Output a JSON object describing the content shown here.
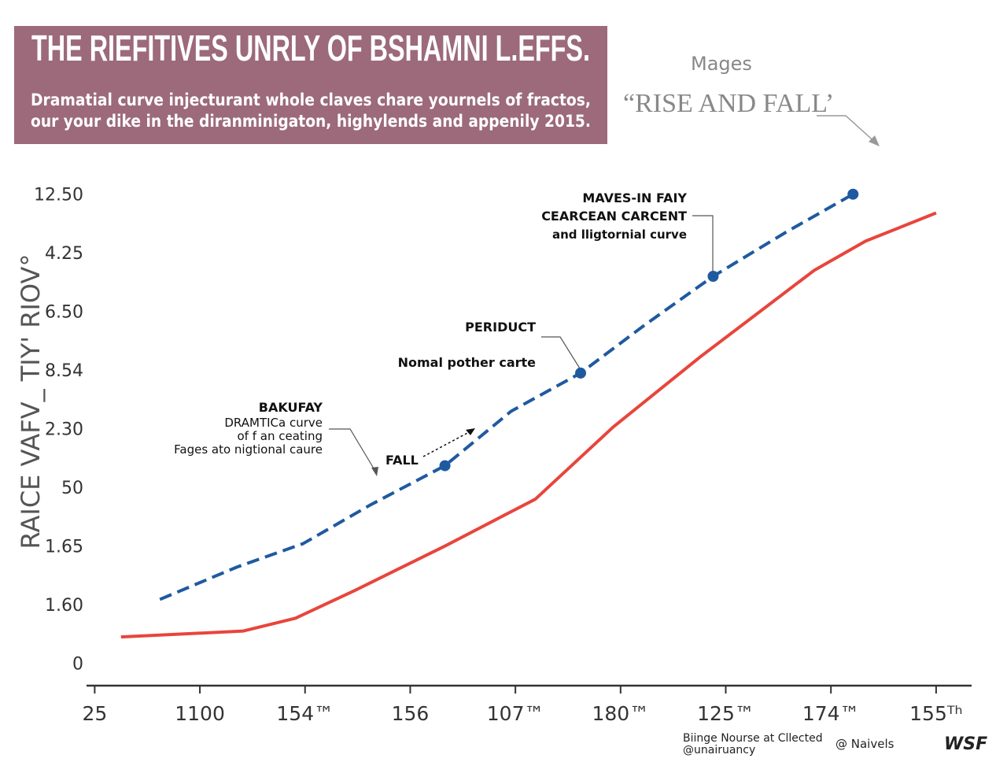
{
  "chart_data": {
    "type": "line",
    "title": "THE RIEFITIVES UNRLY OF BSHAMNI L.EFFS.",
    "subtitle": [
      "Dramatial curve injecturant whole claves chare yournels of fractos,",
      "our your dike in the diranminigaton, highylends and appenily 2015."
    ],
    "side_note": [
      "Mages",
      "“RISE AND FALL’"
    ],
    "ylabel": "RAICE VAFV_ TIY' RIOV°",
    "xlim": [
      -0.1,
      8.3
    ],
    "ylim": [
      -0.3,
      8.6
    ],
    "xticks": [
      {
        "value": 0,
        "label": "25"
      },
      {
        "value": 1,
        "label": "1100"
      },
      {
        "value": 2,
        "label": "154™"
      },
      {
        "value": 3,
        "label": "156"
      },
      {
        "value": 4,
        "label": "107™"
      },
      {
        "value": 5,
        "label": "180™"
      },
      {
        "value": 6,
        "label": "125™"
      },
      {
        "value": 7,
        "label": "174™"
      },
      {
        "value": 8,
        "label": "155ᵀʰ"
      }
    ],
    "yticks": [
      0,
      {
        "value": 1,
        "label": "1.60"
      },
      {
        "value": 2,
        "label": "1.65"
      },
      {
        "value": 3,
        "label": "50"
      },
      {
        "value": 4,
        "label": "2.30"
      },
      {
        "value": 5,
        "label": "8.54"
      },
      {
        "value": 6,
        "label": "6.50"
      },
      {
        "value": 7,
        "label": "4.25"
      },
      {
        "value": 8,
        "label": "12.50"
      }
    ],
    "series": [
      {
        "color": "#1f5aa0",
        "x": [
          0.62,
          1.35,
          1.98,
          2.62,
          3.33,
          3.96,
          4.62,
          5.23,
          5.88,
          6.58,
          7.21
        ],
        "values": [
          1.09,
          1.64,
          2.04,
          2.7,
          3.37,
          4.3,
          4.95,
          5.77,
          6.6,
          7.36,
          8.0
        ]
      },
      {
        "color": "#e8453c",
        "x": [
          0.25,
          1.41,
          1.91,
          2.47,
          3.33,
          4.19,
          4.93,
          5.76,
          6.84,
          7.33,
          8.0
        ],
        "values": [
          0.45,
          0.55,
          0.77,
          1.24,
          2.0,
          2.8,
          4.03,
          5.23,
          6.7,
          7.2,
          7.68
        ]
      }
    ],
    "annotations": [
      "MAVES-IN FAIY",
      "CEARCEAN CARCENT",
      "and lligtornial curve",
      "PERIDUCT",
      "Nomal pother carte",
      "BAKUFAY",
      "DRAMTICa curve",
      "of f an ceating",
      "Fages ato nigtional caure",
      "FALL"
    ],
    "footer": [
      "Biinge Nourse at Cllected",
      "@unairuancy",
      "@ Naivels",
      "WSF"
    ]
  }
}
